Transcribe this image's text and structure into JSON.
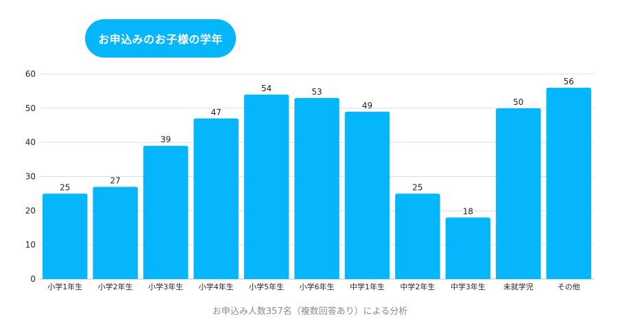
{
  "title": "お申込みのお子様の学年",
  "caption": "お申込み人数357名（複数回答あり）による分析",
  "colors": {
    "bar": "#05b6fb",
    "grid": "#dddddd",
    "axis": "#bbbbbb"
  },
  "chart_data": {
    "type": "bar",
    "title": "お申込みのお子様の学年",
    "categories": [
      "小学1年生",
      "小学2年生",
      "小学3年生",
      "小学4年生",
      "小学5年生",
      "小学6年生",
      "中学1年生",
      "中学2年生",
      "中学3年生",
      "未就学児",
      "その他"
    ],
    "values": [
      25,
      27,
      39,
      47,
      54,
      53,
      49,
      25,
      18,
      50,
      56
    ],
    "yticks": [
      0,
      10,
      20,
      30,
      40,
      50,
      60
    ],
    "ylim": [
      0,
      60
    ],
    "grid": true,
    "data_labels": true
  }
}
